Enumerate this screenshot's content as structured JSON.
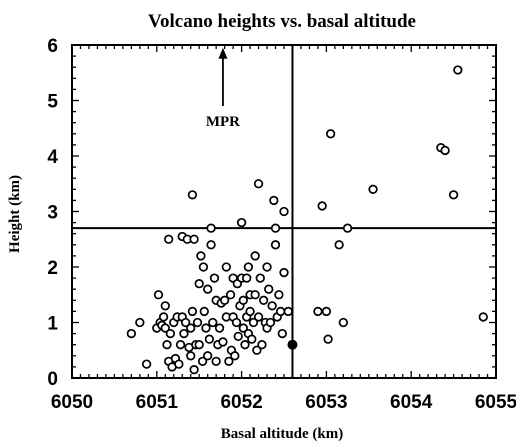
{
  "chart_data": {
    "type": "scatter",
    "title": "Volcano heights vs. basal altitude",
    "xlabel": "Basal altitude (km)",
    "ylabel": "Height (km)",
    "xlim": [
      6050,
      6055
    ],
    "ylim": [
      0,
      6
    ],
    "xticks": [
      6050,
      6051,
      6052,
      6053,
      6054,
      6055
    ],
    "yticks": [
      0,
      1,
      2,
      3,
      4,
      5,
      6
    ],
    "grid": false,
    "reference_lines": {
      "vertical_x": 6052.6,
      "horizontal_y": 2.7
    },
    "annotation": {
      "text": "MPR",
      "arrow_x": 6051.78,
      "arrow_y_start": 4.9,
      "arrow_y_end": 5.95
    },
    "series": [
      {
        "marker": "open-circle",
        "points": [
          [
            6050.7,
            0.8
          ],
          [
            6050.8,
            1.0
          ],
          [
            6050.88,
            0.25
          ],
          [
            6051.0,
            0.9
          ],
          [
            6051.02,
            1.5
          ],
          [
            6051.04,
            1.0
          ],
          [
            6051.06,
            0.95
          ],
          [
            6051.08,
            1.1
          ],
          [
            6051.1,
            0.9
          ],
          [
            6051.1,
            1.3
          ],
          [
            6051.12,
            0.6
          ],
          [
            6051.14,
            0.3
          ],
          [
            6051.14,
            2.5
          ],
          [
            6051.16,
            0.8
          ],
          [
            6051.18,
            0.2
          ],
          [
            6051.2,
            1.0
          ],
          [
            6051.22,
            0.35
          ],
          [
            6051.24,
            1.1
          ],
          [
            6051.26,
            0.25
          ],
          [
            6051.28,
            0.6
          ],
          [
            6051.3,
            2.55
          ],
          [
            6051.3,
            1.1
          ],
          [
            6051.32,
            0.8
          ],
          [
            6051.34,
            1.0
          ],
          [
            6051.36,
            2.5
          ],
          [
            6051.38,
            0.55
          ],
          [
            6051.4,
            0.9
          ],
          [
            6051.4,
            0.4
          ],
          [
            6051.42,
            3.3
          ],
          [
            6051.42,
            1.2
          ],
          [
            6051.44,
            2.5
          ],
          [
            6051.44,
            0.15
          ],
          [
            6051.46,
            0.6
          ],
          [
            6051.48,
            1.0
          ],
          [
            6051.5,
            1.7
          ],
          [
            6051.5,
            0.6
          ],
          [
            6051.52,
            2.2
          ],
          [
            6051.54,
            0.3
          ],
          [
            6051.55,
            2.0
          ],
          [
            6051.56,
            1.2
          ],
          [
            6051.58,
            0.9
          ],
          [
            6051.6,
            0.4
          ],
          [
            6051.6,
            1.6
          ],
          [
            6051.62,
            0.7
          ],
          [
            6051.64,
            2.4
          ],
          [
            6051.64,
            2.7
          ],
          [
            6051.66,
            1.0
          ],
          [
            6051.68,
            1.8
          ],
          [
            6051.7,
            0.3
          ],
          [
            6051.7,
            1.4
          ],
          [
            6051.72,
            0.6
          ],
          [
            6051.74,
            0.9
          ],
          [
            6051.76,
            1.35
          ],
          [
            6051.78,
            0.65
          ],
          [
            6051.8,
            1.4
          ],
          [
            6051.82,
            2.0
          ],
          [
            6051.82,
            1.1
          ],
          [
            6051.85,
            0.3
          ],
          [
            6051.87,
            1.5
          ],
          [
            6051.88,
            0.5
          ],
          [
            6051.9,
            1.1
          ],
          [
            6051.9,
            1.8
          ],
          [
            6051.92,
            0.4
          ],
          [
            6051.94,
            1.0
          ],
          [
            6051.95,
            1.7
          ],
          [
            6051.96,
            0.75
          ],
          [
            6051.98,
            1.3
          ],
          [
            6052.0,
            1.8
          ],
          [
            6052.0,
            2.8
          ],
          [
            6052.02,
            0.9
          ],
          [
            6052.02,
            1.4
          ],
          [
            6052.04,
            0.6
          ],
          [
            6052.06,
            1.1
          ],
          [
            6052.06,
            1.8
          ],
          [
            6052.08,
            2.0
          ],
          [
            6052.08,
            0.8
          ],
          [
            6052.1,
            1.5
          ],
          [
            6052.1,
            1.2
          ],
          [
            6052.12,
            0.7
          ],
          [
            6052.14,
            1.0
          ],
          [
            6052.16,
            2.2
          ],
          [
            6052.16,
            1.5
          ],
          [
            6052.18,
            0.5
          ],
          [
            6052.2,
            1.1
          ],
          [
            6052.2,
            3.5
          ],
          [
            6052.22,
            1.8
          ],
          [
            6052.24,
            0.6
          ],
          [
            6052.26,
            1.4
          ],
          [
            6052.28,
            1.0
          ],
          [
            6052.3,
            0.9
          ],
          [
            6052.3,
            2.0
          ],
          [
            6052.32,
            1.6
          ],
          [
            6052.34,
            1.0
          ],
          [
            6052.36,
            1.3
          ],
          [
            6052.38,
            3.2
          ],
          [
            6052.4,
            2.7
          ],
          [
            6052.4,
            2.4
          ],
          [
            6052.42,
            1.1
          ],
          [
            6052.44,
            1.5
          ],
          [
            6052.46,
            1.2
          ],
          [
            6052.48,
            0.8
          ],
          [
            6052.5,
            1.9
          ],
          [
            6052.5,
            3.0
          ],
          [
            6052.55,
            1.2
          ],
          [
            6052.9,
            1.2
          ],
          [
            6052.95,
            3.1
          ],
          [
            6053.0,
            1.2
          ],
          [
            6053.02,
            0.7
          ],
          [
            6053.05,
            4.4
          ],
          [
            6053.15,
            2.4
          ],
          [
            6053.2,
            1.0
          ],
          [
            6053.25,
            2.7
          ],
          [
            6053.55,
            3.4
          ],
          [
            6054.35,
            4.15
          ],
          [
            6054.4,
            4.1
          ],
          [
            6054.5,
            3.3
          ],
          [
            6054.55,
            5.55
          ],
          [
            6054.85,
            1.1
          ]
        ]
      },
      {
        "marker": "filled-circle",
        "points": [
          [
            6052.6,
            0.6
          ]
        ]
      }
    ]
  }
}
